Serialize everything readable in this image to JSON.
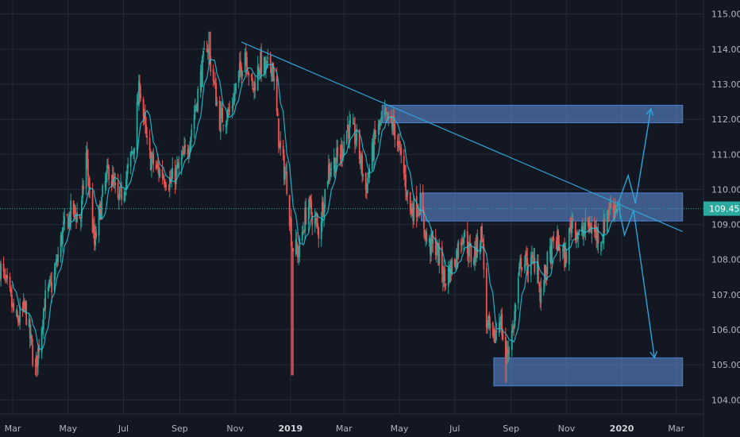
{
  "chart_data": {
    "type": "candlestick",
    "title": "",
    "xlabel": "",
    "ylabel": "",
    "ylim": [
      103.6,
      115.4
    ],
    "y_ticks": [
      "104.000",
      "105.000",
      "106.000",
      "107.000",
      "108.000",
      "109.000",
      "110.000",
      "111.000",
      "112.000",
      "113.000",
      "114.000",
      "115.000"
    ],
    "x_ticks": [
      {
        "label": "Mar",
        "date": "2018-03"
      },
      {
        "label": "May",
        "date": "2018-05"
      },
      {
        "label": "Jul",
        "date": "2018-07"
      },
      {
        "label": "Sep",
        "date": "2018-09"
      },
      {
        "label": "Nov",
        "date": "2018-11"
      },
      {
        "label": "2019",
        "date": "2019-01",
        "bold": true
      },
      {
        "label": "Mar",
        "date": "2019-03"
      },
      {
        "label": "May",
        "date": "2019-05"
      },
      {
        "label": "Jul",
        "date": "2019-07"
      },
      {
        "label": "Sep",
        "date": "2019-09"
      },
      {
        "label": "Nov",
        "date": "2019-11"
      },
      {
        "label": "2020",
        "date": "2020-01",
        "bold": true
      },
      {
        "label": "Mar",
        "date": "2020-03"
      }
    ],
    "x_range": [
      "2018-02-15",
      "2020-03-31"
    ],
    "grid": true,
    "last_price": "109.453",
    "price_path": [
      [
        "2018-02-15",
        107.8
      ],
      [
        "2018-02-25",
        107.0
      ],
      [
        "2018-03-05",
        106.2
      ],
      [
        "2018-03-15",
        106.6
      ],
      [
        "2018-03-26",
        104.8
      ],
      [
        "2018-04-05",
        106.8
      ],
      [
        "2018-04-15",
        107.4
      ],
      [
        "2018-04-25",
        108.8
      ],
      [
        "2018-05-05",
        109.4
      ],
      [
        "2018-05-15",
        109.2
      ],
      [
        "2018-05-21",
        111.0
      ],
      [
        "2018-05-30",
        108.4
      ],
      [
        "2018-06-08",
        109.8
      ],
      [
        "2018-06-15",
        110.6
      ],
      [
        "2018-06-25",
        109.6
      ],
      [
        "2018-07-05",
        110.4
      ],
      [
        "2018-07-12",
        111.2
      ],
      [
        "2018-07-19",
        113.0
      ],
      [
        "2018-07-28",
        111.0
      ],
      [
        "2018-08-06",
        110.6
      ],
      [
        "2018-08-15",
        110.4
      ],
      [
        "2018-08-22",
        110.2
      ],
      [
        "2018-08-31",
        110.6
      ],
      [
        "2018-09-10",
        111.2
      ],
      [
        "2018-09-20",
        112.6
      ],
      [
        "2018-10-01",
        114.2
      ],
      [
        "2018-10-05",
        113.6
      ],
      [
        "2018-10-15",
        112.0
      ],
      [
        "2018-10-26",
        112.2
      ],
      [
        "2018-11-05",
        113.2
      ],
      [
        "2018-11-12",
        114.0
      ],
      [
        "2018-11-20",
        112.8
      ],
      [
        "2018-11-28",
        113.6
      ],
      [
        "2018-12-05",
        113.4
      ],
      [
        "2018-12-12",
        113.6
      ],
      [
        "2018-12-20",
        111.2
      ],
      [
        "2018-12-28",
        110.2
      ],
      [
        "2019-01-03",
        108.4
      ],
      [
        "2019-01-10",
        108.2
      ],
      [
        "2019-01-20",
        109.6
      ],
      [
        "2019-02-01",
        108.8
      ],
      [
        "2019-02-12",
        110.6
      ],
      [
        "2019-02-25",
        111.0
      ],
      [
        "2019-03-05",
        111.8
      ],
      [
        "2019-03-15",
        111.4
      ],
      [
        "2019-03-25",
        110.0
      ],
      [
        "2019-04-05",
        111.6
      ],
      [
        "2019-04-15",
        112.0
      ],
      [
        "2019-04-25",
        111.8
      ],
      [
        "2019-05-05",
        110.6
      ],
      [
        "2019-05-13",
        109.4
      ],
      [
        "2019-05-24",
        109.6
      ],
      [
        "2019-06-01",
        108.4
      ],
      [
        "2019-06-10",
        108.4
      ],
      [
        "2019-06-20",
        107.4
      ],
      [
        "2019-07-01",
        108.0
      ],
      [
        "2019-07-10",
        108.8
      ],
      [
        "2019-07-20",
        108.0
      ],
      [
        "2019-07-31",
        108.8
      ],
      [
        "2019-08-05",
        106.2
      ],
      [
        "2019-08-12",
        105.6
      ],
      [
        "2019-08-20",
        106.4
      ],
      [
        "2019-08-26",
        105.2
      ],
      [
        "2019-09-03",
        106.0
      ],
      [
        "2019-09-12",
        108.0
      ],
      [
        "2019-09-20",
        107.8
      ],
      [
        "2019-09-30",
        108.0
      ],
      [
        "2019-10-03",
        106.8
      ],
      [
        "2019-10-10",
        107.8
      ],
      [
        "2019-10-20",
        108.6
      ],
      [
        "2019-10-31",
        108.0
      ],
      [
        "2019-11-07",
        109.2
      ],
      [
        "2019-11-15",
        108.6
      ],
      [
        "2019-11-25",
        109.0
      ],
      [
        "2019-12-02",
        108.8
      ],
      [
        "2019-12-10",
        108.6
      ],
      [
        "2019-12-16",
        109.4
      ],
      [
        "2019-12-23",
        109.6
      ],
      [
        "2019-12-30",
        109.45
      ]
    ],
    "wick_extremes": [
      [
        "2018-03-26",
        104.7
      ],
      [
        "2018-10-04",
        114.5
      ],
      [
        "2019-01-03",
        104.7
      ],
      [
        "2019-08-26",
        104.5
      ]
    ],
    "zones": [
      {
        "start": "2019-04-12",
        "end": "2020-03-08",
        "low": 111.9,
        "high": 112.4
      },
      {
        "start": "2019-05-25",
        "end": "2020-03-08",
        "low": 109.1,
        "high": 109.9
      },
      {
        "start": "2019-08-13",
        "end": "2020-03-08",
        "low": 104.4,
        "high": 105.2
      }
    ],
    "trendline": {
      "start": [
        "2018-11-08",
        114.2
      ],
      "end": [
        "2020-03-08",
        108.8
      ]
    },
    "projection_arrows": [
      [
        [
          "2019-12-28",
          109.6
        ],
        [
          "2020-01-08",
          110.4
        ],
        [
          "2020-01-16",
          109.6
        ],
        [
          "2020-02-02",
          112.3
        ]
      ],
      [
        [
          "2019-12-28",
          109.6
        ],
        [
          "2020-01-04",
          108.7
        ],
        [
          "2020-01-14",
          109.4
        ],
        [
          "2020-02-06",
          105.2
        ]
      ]
    ],
    "colors": {
      "background": "#131722",
      "grid": "#262b3a",
      "up": "#26a69a",
      "down": "#ef5350",
      "ma": "#26c6da",
      "trendline": "#2fa3d8",
      "zone_fill": "#5b86c8",
      "zone_stroke": "#4a7fd6",
      "last_price_label": "#2ba99e",
      "axis_text": "#b2b5be"
    }
  }
}
